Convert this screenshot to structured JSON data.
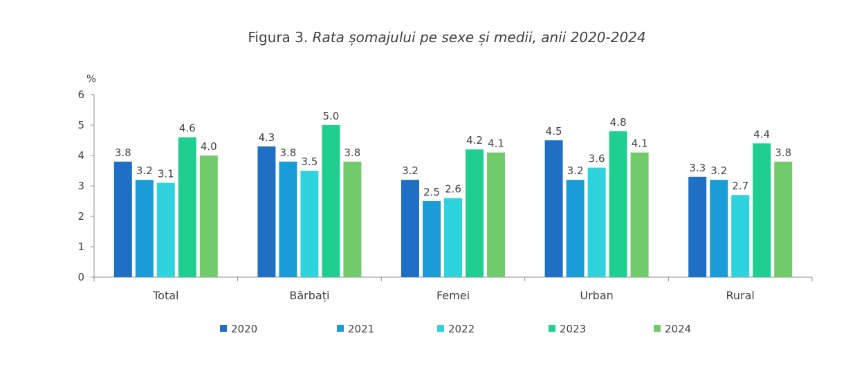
{
  "title": {
    "prefix": "Figura 3.",
    "italic": "Rata șomajului pe sexe și medii, anii 2020-2024"
  },
  "chart_data": {
    "type": "bar",
    "categories": [
      "Total",
      "Bărbați",
      "Femei",
      "Urban",
      "Rural"
    ],
    "series": [
      {
        "name": "2020",
        "color": "#1F6FC5",
        "values": [
          3.8,
          4.3,
          3.2,
          4.5,
          3.3
        ],
        "labels": [
          "3.8",
          "4.3",
          "3.2",
          "4.5",
          "3.3"
        ]
      },
      {
        "name": "2021",
        "color": "#1A9CD8",
        "values": [
          3.2,
          3.8,
          2.5,
          3.2,
          3.2
        ],
        "labels": [
          "3.2",
          "3.8",
          "2.5",
          "3.2",
          "3.2"
        ]
      },
      {
        "name": "2022",
        "color": "#2ED3DE",
        "values": [
          3.1,
          3.5,
          2.6,
          3.6,
          2.7
        ],
        "labels": [
          "3.1",
          "3.5",
          "2.6",
          "3.6",
          "2.7"
        ]
      },
      {
        "name": "2023",
        "color": "#1FCF8F",
        "values": [
          4.6,
          5.0,
          4.2,
          4.8,
          4.4
        ],
        "labels": [
          "4.6",
          "5.0",
          "4.2",
          "4.8",
          "4.4"
        ]
      },
      {
        "name": "2024",
        "color": "#72CB6A",
        "values": [
          4.0,
          3.8,
          4.1,
          4.1,
          3.8
        ],
        "labels": [
          "4.0",
          "3.8",
          "4.1",
          "4.1",
          "3.8"
        ]
      }
    ],
    "ylabel": "%",
    "ylim": [
      0,
      6
    ],
    "yticks": [
      "0",
      "1",
      "2",
      "3",
      "4",
      "5",
      "6"
    ],
    "grid": false,
    "legend_position": "bottom"
  }
}
